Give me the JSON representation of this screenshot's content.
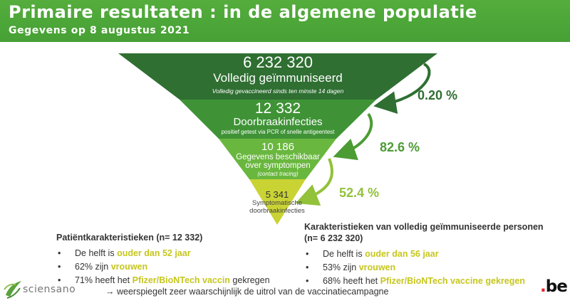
{
  "header": {
    "title": "Primaire resultaten : in de algemene populatie",
    "subtitle": "Gegevens op 8 augustus 2021"
  },
  "funnel": {
    "levels": [
      {
        "number": "6 232 320",
        "label": "Volledig geïmmuniseerd",
        "sub": "Volledig gevaccineerd sinds ten minste 14 dagen",
        "color": "#2f6f32"
      },
      {
        "number": "12 332",
        "label": "Doorbraakinfecties",
        "sub": "positief getest via PCR of snelle antigeentest",
        "color": "#3f9336"
      },
      {
        "number": "10 186",
        "label": "Gegevens beschikbaar",
        "label2": "over symptompen",
        "sub": "(contact tracing)",
        "color": "#69b73e"
      },
      {
        "number": "5 341",
        "label": "Symptomatische doorbraakinfecties",
        "color": "#c9d334"
      }
    ],
    "percentages": [
      {
        "value": "0.20 %",
        "color": "#2f6f32"
      },
      {
        "value": "82.6 %",
        "color": "#4c9c34"
      },
      {
        "value": "52.4 %",
        "color": "#92c13a"
      }
    ]
  },
  "left_section": {
    "heading": "Patiëntkarakteristieken (n= 12 332)",
    "items": [
      {
        "bullet": "•",
        "pre": "De helft is ",
        "hl": "ouder dan 52 jaar",
        "post": ""
      },
      {
        "bullet": "•",
        "pre": "62% zijn ",
        "hl": "vrouwen",
        "post": ""
      },
      {
        "bullet": "•",
        "pre": "71% heeft het ",
        "hl": "Pfizer/BioNTech vaccin",
        "post": " gekregen"
      }
    ]
  },
  "right_section": {
    "heading": "Karakteristieken van volledig geïmmuniseerde personen",
    "heading2": "(n= 6 232 320)",
    "items": [
      {
        "bullet": "•",
        "pre": "De helft is ",
        "hl": "ouder dan 56 jaar",
        "post": ""
      },
      {
        "bullet": "•",
        "pre": "53% zijn ",
        "hl": "vrouwen",
        "post": ""
      },
      {
        "bullet": "•",
        "pre": "68% heeft het ",
        "hl": "Pfizer/BioNTech vaccine gekregen",
        "post": ""
      }
    ]
  },
  "footer": {
    "arrow": "→",
    "conclusion": "weerspiegelt zeer waarschijnlijk de uitrol van de vaccinatiecampagne"
  },
  "logos": {
    "sciensano": "sciensano",
    "be_dot": ".",
    "be_text": "be"
  },
  "colors": {
    "header": "#4ea83a",
    "highlight": "#c6c61e"
  }
}
